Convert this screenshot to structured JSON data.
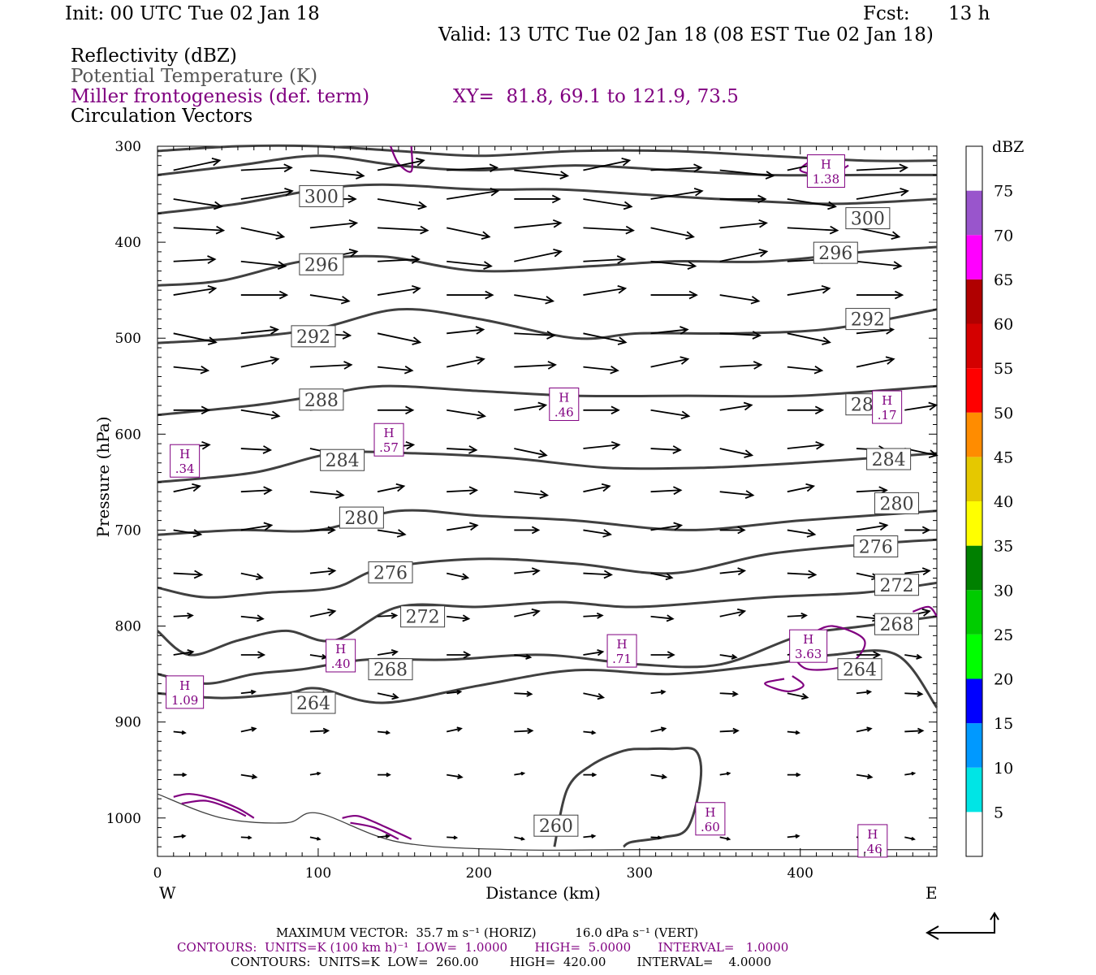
{
  "header": {
    "init": "Init: 00 UTC Tue 02 Jan 18",
    "fcst_label": "Fcst:",
    "fcst_value": "13 h",
    "valid": "Valid: 13 UTC Tue 02 Jan 18 (08 EST Tue 02 Jan 18)",
    "field1": "Reflectivity (dBZ)",
    "field2": "Potential Temperature (K)",
    "field3": "Miller frontogenesis (def. term)",
    "xy": "XY=  81.8, 69.1 to 121.9, 73.5",
    "field4": "Circulation Vectors"
  },
  "colors": {
    "theta": "#404040",
    "fronto": "#800080",
    "vector": "#000000"
  },
  "footer": {
    "max_vector": "MAXIMUM VECTOR:  35.7 m s⁻¹ (HORIZ)          16.0 dPa s⁻¹ (VERT)",
    "contours1": "CONTOURS:  UNITS=K (100 km h)⁻¹  LOW=  1.0000       HIGH=  5.0000       INTERVAL=   1.0000",
    "contours2": "CONTOURS:  UNITS=K  LOW=  260.00        HIGH=  420.00        INTERVAL=    4.0000"
  },
  "chart_data": {
    "type": "contour cross-section",
    "xlabel": "Distance (km)",
    "ylabel": "Pressure (hPa)",
    "xlim": [
      0,
      485
    ],
    "ylim": [
      1040,
      300
    ],
    "x_ticks": [
      0,
      100,
      200,
      300,
      400
    ],
    "y_ticks": [
      300,
      400,
      500,
      600,
      700,
      800,
      900,
      1000
    ],
    "x_end_labels": {
      "left": "W",
      "right": "E"
    },
    "colorbar": {
      "title": "dBZ",
      "levels": [
        5,
        10,
        15,
        20,
        25,
        30,
        35,
        40,
        45,
        50,
        55,
        60,
        65,
        70,
        75
      ],
      "colors": [
        "#ffffff",
        "#00e5e5",
        "#0099ff",
        "#0000ff",
        "#00ff00",
        "#00cc00",
        "#008000",
        "#ffff00",
        "#e5c800",
        "#ff8c00",
        "#ff0000",
        "#d40000",
        "#b00000",
        "#ff00ff",
        "#9955cc",
        "#ffffff"
      ]
    },
    "theta_contours": [
      {
        "label": "260",
        "x": [
          0,
          40,
          80,
          100,
          150,
          220,
          300,
          400,
          485
        ],
        "p": [
          975,
          1000,
          1005,
          995,
          1025,
          1033,
          1033,
          1033,
          1033
        ]
      },
      {
        "label": "264",
        "x": [
          0,
          40,
          80,
          100,
          140,
          200,
          260,
          320,
          380,
          420,
          460,
          485
        ],
        "p": [
          870,
          875,
          870,
          865,
          880,
          862,
          846,
          850,
          840,
          830,
          830,
          885
        ]
      },
      {
        "label": "268",
        "x": [
          0,
          30,
          60,
          90,
          130,
          180,
          240,
          300,
          350,
          400,
          440,
          485
        ],
        "p": [
          850,
          860,
          850,
          845,
          835,
          835,
          830,
          840,
          840,
          810,
          800,
          790
        ]
      },
      {
        "label": "272",
        "x": [
          0,
          20,
          50,
          80,
          110,
          150,
          200,
          250,
          300,
          380,
          440,
          485
        ],
        "p": [
          805,
          830,
          815,
          805,
          815,
          780,
          780,
          775,
          780,
          770,
          765,
          755
        ]
      },
      {
        "label": "276",
        "x": [
          0,
          30,
          70,
          110,
          140,
          200,
          260,
          320,
          380,
          440,
          485
        ],
        "p": [
          760,
          770,
          765,
          760,
          740,
          730,
          735,
          745,
          725,
          715,
          710
        ]
      },
      {
        "label": "280",
        "x": [
          0,
          50,
          100,
          150,
          200,
          260,
          330,
          400,
          485
        ],
        "p": [
          705,
          700,
          700,
          680,
          685,
          690,
          700,
          690,
          680
        ]
      },
      {
        "label": "284",
        "x": [
          0,
          60,
          110,
          160,
          220,
          280,
          340,
          400,
          485
        ],
        "p": [
          650,
          640,
          620,
          620,
          625,
          635,
          635,
          630,
          620
        ]
      },
      {
        "label": "288",
        "x": [
          0,
          60,
          100,
          140,
          200,
          260,
          330,
          400,
          485
        ],
        "p": [
          580,
          570,
          560,
          550,
          555,
          560,
          560,
          560,
          550
        ]
      },
      {
        "label": "292",
        "x": [
          0,
          50,
          100,
          150,
          200,
          260,
          300,
          360,
          420,
          485
        ],
        "p": [
          505,
          500,
          490,
          470,
          480,
          500,
          495,
          495,
          490,
          470
        ]
      },
      {
        "label": "296",
        "x": [
          0,
          40,
          90,
          140,
          200,
          270,
          320,
          380,
          440,
          485
        ],
        "p": [
          445,
          440,
          420,
          415,
          430,
          425,
          420,
          420,
          410,
          405
        ]
      },
      {
        "label": "300",
        "x": [
          0,
          50,
          100,
          140,
          200,
          250,
          300,
          350,
          420,
          485
        ],
        "p": [
          370,
          360,
          345,
          340,
          345,
          345,
          350,
          355,
          360,
          355
        ]
      },
      {
        "label": "",
        "x": [
          0,
          50,
          100,
          150,
          200,
          260,
          320,
          380,
          440,
          485
        ],
        "p": [
          330,
          320,
          310,
          320,
          325,
          320,
          325,
          330,
          330,
          330
        ]
      },
      {
        "label": "",
        "x": [
          0,
          50,
          100,
          150,
          200,
          260,
          320,
          380,
          440,
          485
        ],
        "p": [
          305,
          300,
          300,
          305,
          310,
          305,
          305,
          310,
          315,
          315
        ]
      },
      {
        "label": "260",
        "x": [
          247,
          255,
          270,
          290,
          305,
          320,
          335,
          338,
          330,
          315,
          295,
          290
        ],
        "p": [
          1030,
          970,
          945,
          930,
          928,
          928,
          930,
          960,
          1010,
          1020,
          1025,
          1030
        ]
      }
    ],
    "theta_label_positions": [
      {
        "text": "300",
        "x": 102,
        "p": 352
      },
      {
        "text": "300",
        "x": 442,
        "p": 375
      },
      {
        "text": "296",
        "x": 102,
        "p": 423
      },
      {
        "text": "296",
        "x": 422,
        "p": 411
      },
      {
        "text": "292",
        "x": 97,
        "p": 498
      },
      {
        "text": "292",
        "x": 442,
        "p": 480
      },
      {
        "text": "288",
        "x": 102,
        "p": 564
      },
      {
        "text": "288",
        "x": 442,
        "p": 569
      },
      {
        "text": "284",
        "x": 115,
        "p": 627
      },
      {
        "text": "284",
        "x": 455,
        "p": 626
      },
      {
        "text": "280",
        "x": 127,
        "p": 687
      },
      {
        "text": "280",
        "x": 460,
        "p": 672
      },
      {
        "text": "276",
        "x": 145,
        "p": 744
      },
      {
        "text": "276",
        "x": 447,
        "p": 717
      },
      {
        "text": "272",
        "x": 165,
        "p": 790
      },
      {
        "text": "272",
        "x": 460,
        "p": 757
      },
      {
        "text": "268",
        "x": 145,
        "p": 845
      },
      {
        "text": "268",
        "x": 460,
        "p": 798
      },
      {
        "text": "264",
        "x": 97,
        "p": 880
      },
      {
        "text": "264",
        "x": 437,
        "p": 845
      },
      {
        "text": "260",
        "x": 248,
        "p": 1008
      }
    ],
    "frontogenesis_maxima": [
      {
        "label": "H",
        "value": "1.38",
        "x": 416,
        "p": 325
      },
      {
        "label": "H",
        "value": ".46",
        "x": 253,
        "p": 568
      },
      {
        "label": "H",
        "value": ".17",
        "x": 454,
        "p": 571
      },
      {
        "label": "H",
        "value": ".57",
        "x": 144,
        "p": 605
      },
      {
        "label": "H",
        "value": ".34",
        "x": 17,
        "p": 627
      },
      {
        "label": "H",
        "value": ".40",
        "x": 114,
        "p": 830
      },
      {
        "label": "H",
        "value": ".71",
        "x": 289,
        "p": 825
      },
      {
        "label": "H",
        "value": "3.63",
        "x": 405,
        "p": 820
      },
      {
        "label": "H",
        "value": "1.09",
        "x": 17,
        "p": 868
      },
      {
        "label": "H",
        "value": ".60",
        "x": 344,
        "p": 1000
      },
      {
        "label": "H",
        "value": ".46",
        "x": 445,
        "p": 1023
      }
    ],
    "vector_field": {
      "description": "Circulation vectors, westerly flow increasing with height",
      "max_horizontal": 35.7,
      "max_vertical": 16.0
    }
  }
}
